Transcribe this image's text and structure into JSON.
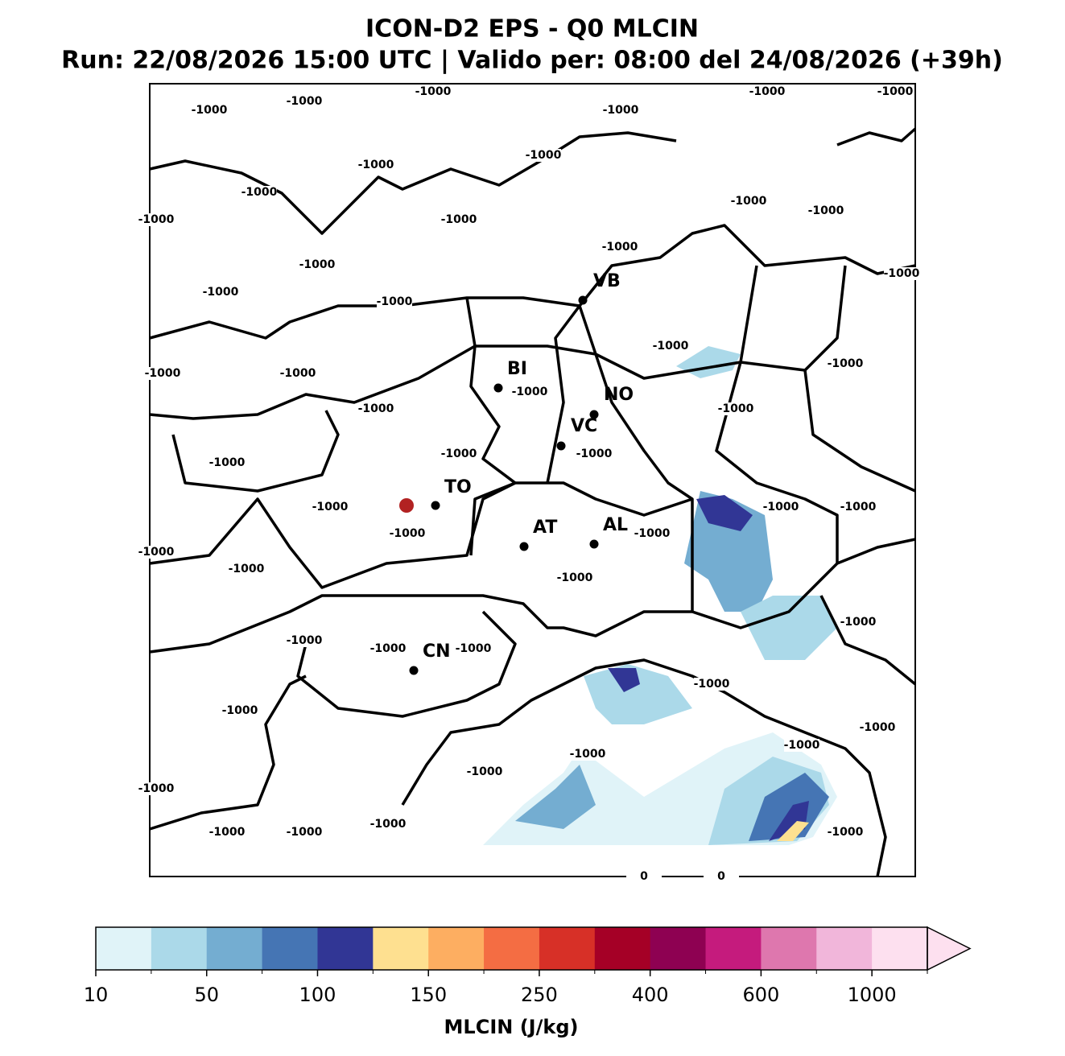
{
  "header": {
    "title": "ICON-D2 EPS - Q0 MLCIN",
    "subtitle": "Run: 22/08/2026 15:00 UTC | Valido per: 08:00 del 24/08/2026 (+39h)"
  },
  "cities": [
    "VB",
    "BI",
    "NO",
    "VC",
    "TO",
    "AT",
    "AL",
    "CN"
  ],
  "contour_labels": [
    -1000,
    -1000,
    -1000,
    -1000,
    -1000,
    -1000,
    -1000,
    -1000,
    -1000,
    -1000,
    -1000,
    -1000,
    -1000,
    -1000,
    -1000,
    -1000,
    -1000,
    -1000,
    -1000,
    -1000,
    -1000,
    -1000,
    -1000,
    -1000,
    -1000,
    -1000,
    -1000,
    -1000,
    -1000,
    -1000,
    -1000,
    -1000,
    -1000,
    -1000,
    -1000,
    -1000,
    -1000,
    -1000,
    -1000,
    -1000,
    -1000,
    -1000,
    -1000,
    -1000,
    -1000,
    -1000,
    -1000,
    -1000,
    -1000,
    -1000,
    -1000,
    0,
    0
  ],
  "colorbar": {
    "label": "MLCIN (J/kg)",
    "ticks": [
      10,
      50,
      100,
      150,
      250,
      400,
      600,
      1000
    ],
    "colors": [
      "#e0f3f8",
      "#abd9e9",
      "#74add1",
      "#4575b4",
      "#313695",
      "#fee090",
      "#fdae61",
      "#f46d43",
      "#d73027",
      "#a50026",
      "#8e0152",
      "#c51b7d",
      "#de77ae",
      "#f1b6da",
      "#fde0ef"
    ]
  }
}
